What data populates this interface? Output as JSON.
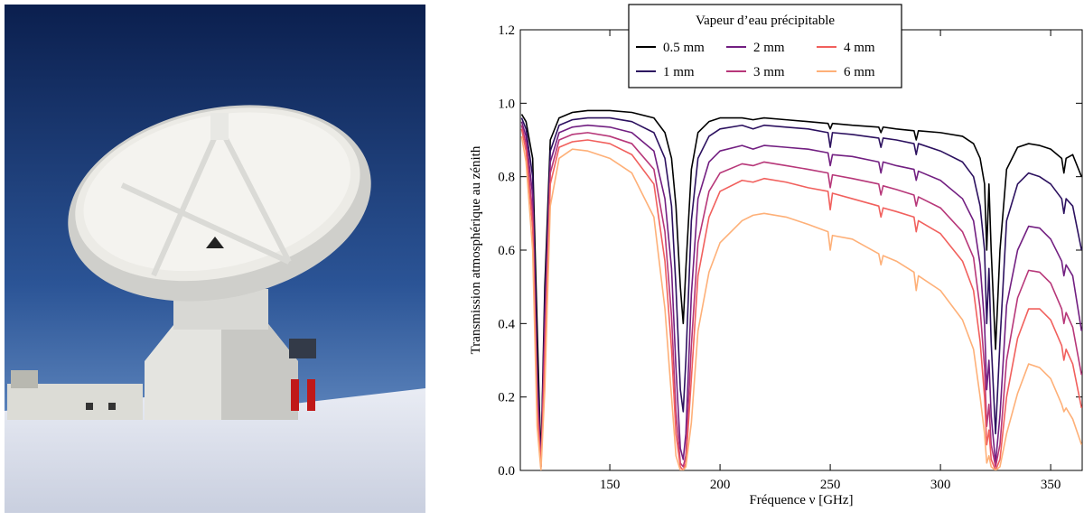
{
  "chart_data": {
    "type": "line",
    "x_label": "Fréquence ν [GHz]",
    "y_label": "Transmission atmosphérique au zénith",
    "legend_title": "Vapeur d’eau précipitable",
    "legend": "upper center",
    "xlim": [
      109.4,
      364.3
    ],
    "ylim": [
      0,
      1.2
    ],
    "xticks": [
      150,
      200,
      250,
      300,
      350
    ],
    "yticks": [
      {
        "value": 0,
        "label": "0.0"
      },
      0.2,
      0.4,
      0.6,
      0.8,
      {
        "value": 1,
        "label": "1.0"
      },
      1.2
    ],
    "x": [
      110,
      112,
      115,
      117,
      118.75,
      120.5,
      123,
      127,
      133,
      140,
      150,
      160,
      170,
      175,
      178,
      180,
      182,
      183.3,
      184.5,
      187,
      190,
      195,
      200,
      210,
      215,
      220,
      230,
      240,
      249,
      250,
      251,
      260,
      272,
      273,
      274,
      280,
      288,
      289,
      290,
      300,
      310,
      315,
      318,
      320,
      321,
      322,
      323,
      325,
      327,
      330,
      335,
      340,
      345,
      350,
      355,
      356,
      357,
      360,
      364
    ],
    "series": [
      {
        "name": "0.5 mm",
        "color": "#000000",
        "values": [
          0.97,
          0.95,
          0.85,
          0.4,
          0.02,
          0.5,
          0.9,
          0.96,
          0.975,
          0.98,
          0.98,
          0.975,
          0.96,
          0.92,
          0.85,
          0.72,
          0.5,
          0.4,
          0.55,
          0.82,
          0.92,
          0.95,
          0.96,
          0.96,
          0.955,
          0.96,
          0.955,
          0.95,
          0.945,
          0.93,
          0.945,
          0.94,
          0.935,
          0.92,
          0.935,
          0.93,
          0.925,
          0.9,
          0.925,
          0.92,
          0.91,
          0.89,
          0.85,
          0.78,
          0.6,
          0.78,
          0.6,
          0.33,
          0.6,
          0.82,
          0.88,
          0.89,
          0.885,
          0.875,
          0.85,
          0.81,
          0.85,
          0.86,
          0.8
        ]
      },
      {
        "name": "1 mm",
        "color": "#2c115f",
        "values": [
          0.96,
          0.93,
          0.8,
          0.3,
          0.01,
          0.45,
          0.87,
          0.94,
          0.955,
          0.96,
          0.96,
          0.95,
          0.92,
          0.85,
          0.72,
          0.5,
          0.22,
          0.16,
          0.3,
          0.68,
          0.85,
          0.91,
          0.93,
          0.94,
          0.93,
          0.94,
          0.935,
          0.93,
          0.92,
          0.88,
          0.92,
          0.915,
          0.905,
          0.88,
          0.905,
          0.9,
          0.89,
          0.86,
          0.89,
          0.87,
          0.84,
          0.8,
          0.72,
          0.6,
          0.4,
          0.55,
          0.35,
          0.1,
          0.35,
          0.68,
          0.78,
          0.81,
          0.8,
          0.78,
          0.74,
          0.7,
          0.74,
          0.72,
          0.6
        ]
      },
      {
        "name": "2 mm",
        "color": "#721f81",
        "values": [
          0.95,
          0.91,
          0.75,
          0.25,
          0.01,
          0.4,
          0.84,
          0.92,
          0.935,
          0.94,
          0.935,
          0.92,
          0.87,
          0.74,
          0.55,
          0.28,
          0.06,
          0.03,
          0.1,
          0.48,
          0.74,
          0.84,
          0.87,
          0.885,
          0.875,
          0.885,
          0.88,
          0.875,
          0.865,
          0.83,
          0.86,
          0.855,
          0.84,
          0.81,
          0.84,
          0.83,
          0.82,
          0.79,
          0.815,
          0.79,
          0.74,
          0.68,
          0.56,
          0.4,
          0.22,
          0.3,
          0.15,
          0.02,
          0.15,
          0.45,
          0.6,
          0.665,
          0.66,
          0.63,
          0.57,
          0.53,
          0.56,
          0.53,
          0.38
        ]
      },
      {
        "name": "3 mm",
        "color": "#b73779",
        "values": [
          0.94,
          0.89,
          0.7,
          0.2,
          0.01,
          0.35,
          0.81,
          0.9,
          0.915,
          0.92,
          0.91,
          0.89,
          0.82,
          0.65,
          0.42,
          0.16,
          0.02,
          0.01,
          0.04,
          0.34,
          0.62,
          0.76,
          0.81,
          0.835,
          0.83,
          0.84,
          0.83,
          0.82,
          0.81,
          0.77,
          0.805,
          0.795,
          0.78,
          0.75,
          0.775,
          0.765,
          0.75,
          0.72,
          0.745,
          0.715,
          0.65,
          0.58,
          0.44,
          0.28,
          0.12,
          0.18,
          0.07,
          0.01,
          0.07,
          0.3,
          0.47,
          0.545,
          0.54,
          0.51,
          0.44,
          0.4,
          0.43,
          0.39,
          0.26
        ]
      },
      {
        "name": "4 mm",
        "color": "#f1605d",
        "values": [
          0.93,
          0.87,
          0.66,
          0.17,
          0.01,
          0.3,
          0.78,
          0.88,
          0.895,
          0.9,
          0.89,
          0.86,
          0.78,
          0.57,
          0.33,
          0.1,
          0.01,
          0,
          0.02,
          0.25,
          0.53,
          0.69,
          0.76,
          0.79,
          0.785,
          0.795,
          0.785,
          0.77,
          0.76,
          0.71,
          0.755,
          0.74,
          0.72,
          0.69,
          0.715,
          0.705,
          0.69,
          0.65,
          0.68,
          0.645,
          0.57,
          0.49,
          0.35,
          0.2,
          0.07,
          0.11,
          0.03,
          0,
          0.03,
          0.2,
          0.36,
          0.44,
          0.44,
          0.41,
          0.34,
          0.3,
          0.33,
          0.29,
          0.17
        ]
      },
      {
        "name": "6 mm",
        "color": "#feb078",
        "values": [
          0.91,
          0.84,
          0.6,
          0.12,
          0,
          0.22,
          0.72,
          0.85,
          0.875,
          0.87,
          0.85,
          0.81,
          0.69,
          0.44,
          0.2,
          0.04,
          0,
          0,
          0.01,
          0.13,
          0.38,
          0.54,
          0.62,
          0.68,
          0.695,
          0.7,
          0.69,
          0.67,
          0.65,
          0.6,
          0.64,
          0.63,
          0.59,
          0.56,
          0.585,
          0.57,
          0.54,
          0.49,
          0.53,
          0.49,
          0.41,
          0.33,
          0.2,
          0.1,
          0.02,
          0.04,
          0.01,
          0,
          0.01,
          0.1,
          0.21,
          0.29,
          0.28,
          0.25,
          0.18,
          0.16,
          0.17,
          0.14,
          0.07
        ]
      }
    ]
  }
}
